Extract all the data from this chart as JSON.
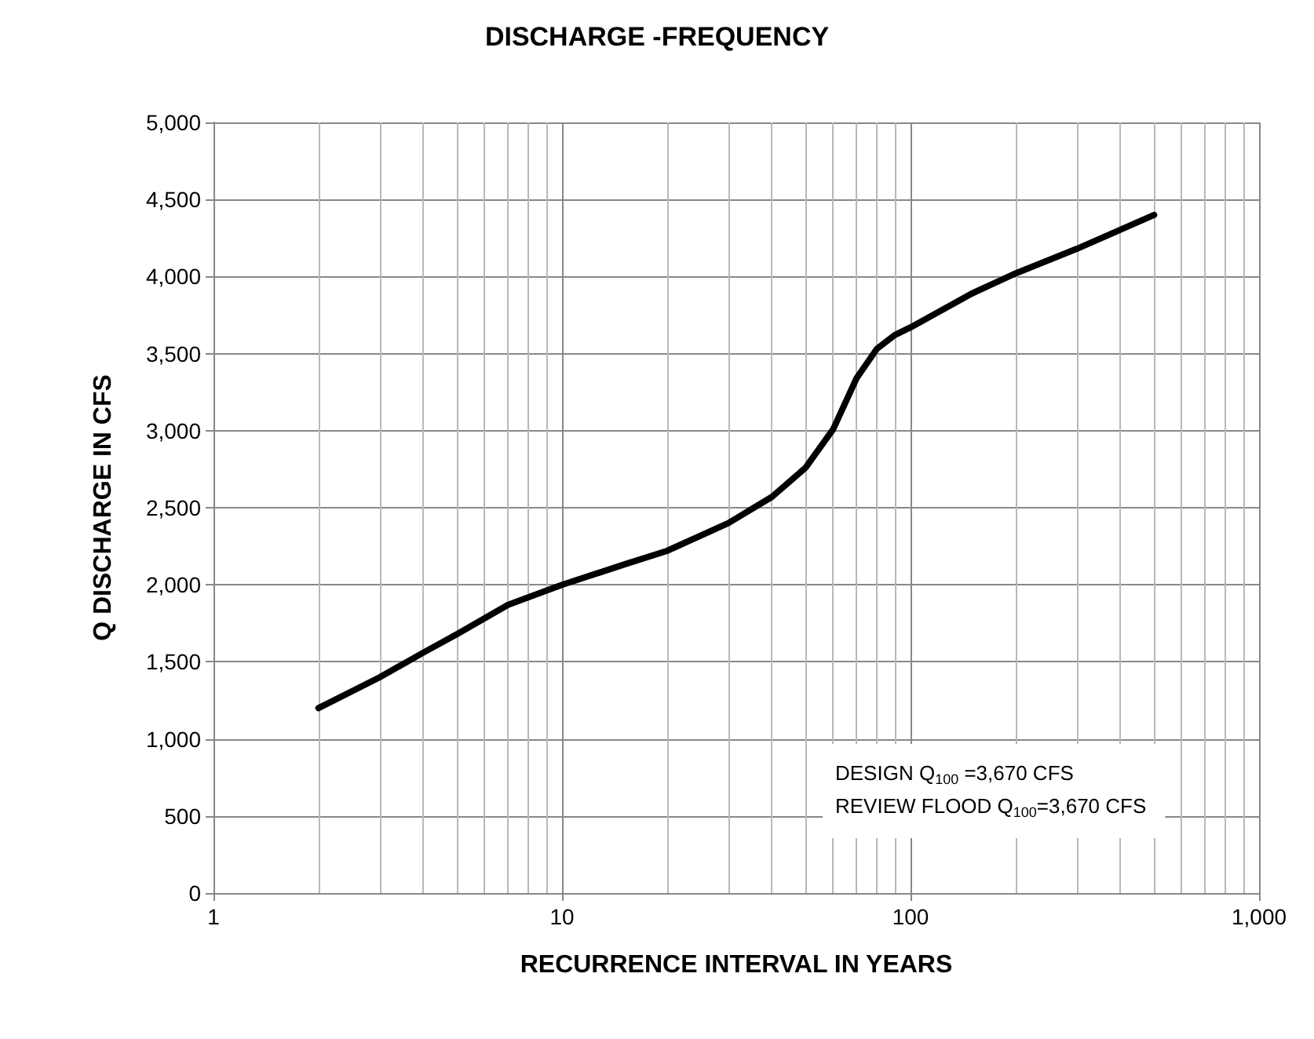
{
  "chart_data": {
    "type": "line",
    "title": "DISCHARGE -FREQUENCY",
    "xlabel": "RECURRENCE INTERVAL IN YEARS",
    "ylabel": "Q DISCHARGE IN CFS",
    "annotations": [
      "DESIGN Q$_{100}$ =3,670 CFS",
      "REVIEW FLOOD Q$_{100}$=3,670 CFS"
    ],
    "log": "x",
    "grid": true,
    "marker": "none",
    "line_style": "solid",
    "xlim": [
      1,
      1000
    ],
    "xticks": [
      1,
      10,
      100,
      {
        "value": 1000,
        "label": "1,000"
      }
    ],
    "ylim": [
      0,
      5000
    ],
    "yticks": [
      0,
      500,
      {
        "value": 1000,
        "label": "1,000"
      },
      {
        "value": 1500,
        "label": "1,500"
      },
      {
        "value": 2000,
        "label": "2,000"
      },
      {
        "value": 2500,
        "label": "2,500"
      },
      {
        "value": 3000,
        "label": "3,000"
      },
      {
        "value": 3500,
        "label": "3,500"
      },
      {
        "value": 4000,
        "label": "4,000"
      },
      {
        "value": 4500,
        "label": "4,500"
      },
      {
        "value": 5000,
        "label": "5,000"
      }
    ],
    "series": [
      {
        "color": "#000000",
        "x": [
          2,
          3,
          4,
          5,
          7,
          10,
          15,
          20,
          30,
          40,
          50,
          60,
          70,
          80,
          90,
          100,
          150,
          200,
          300,
          500
        ],
        "values": [
          1200,
          1400,
          1560,
          1680,
          1870,
          2000,
          2130,
          2220,
          2400,
          2570,
          2760,
          3010,
          3340,
          3530,
          3620,
          3670,
          3890,
          4020,
          4180,
          4400
        ]
      }
    ]
  }
}
